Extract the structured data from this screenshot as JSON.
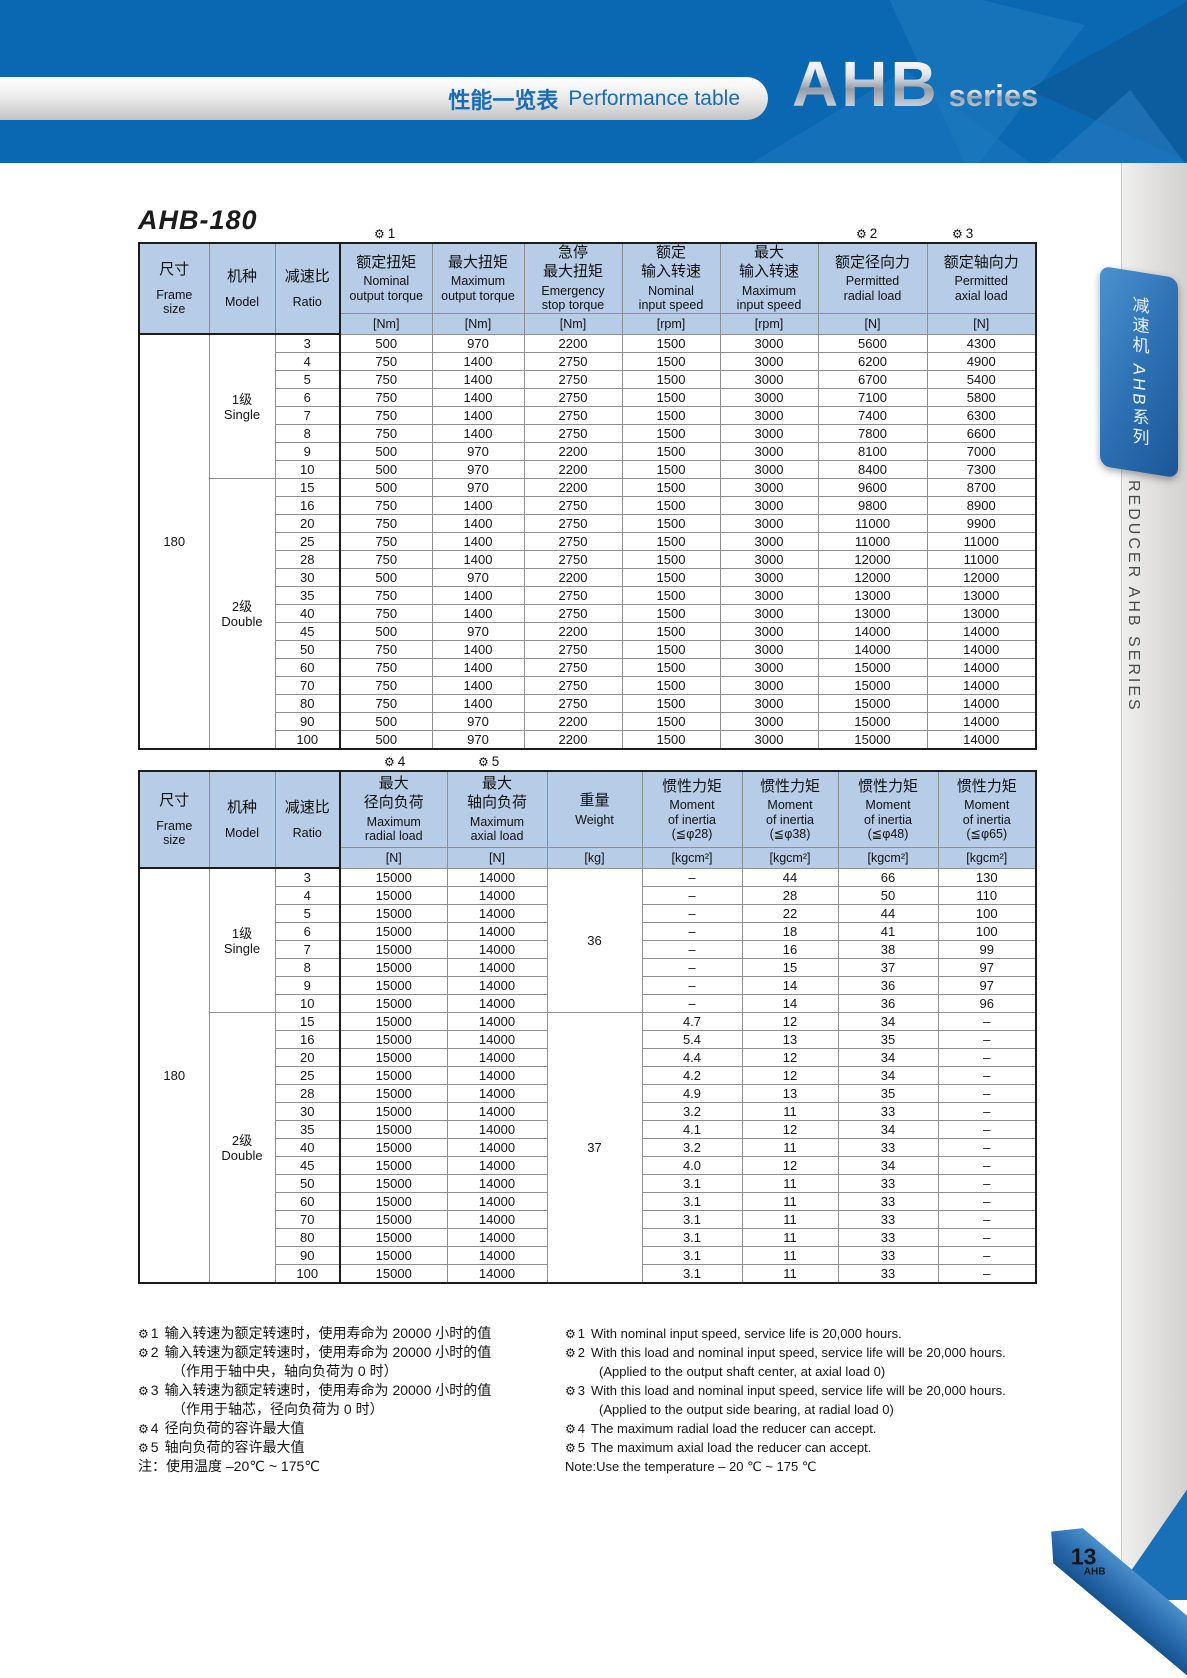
{
  "banner": {
    "category_zh": "性能一览表",
    "category_en": "Performance table",
    "series_name": "AHB",
    "series_suffix": "series"
  },
  "sidebar": {
    "tab_label": "减速机 AHB系列",
    "edge_label": "REDUCER AHB SERIES"
  },
  "page_footer": {
    "page_number": "13",
    "page_series": "AHB"
  },
  "section": {
    "title": "AHB-180"
  },
  "icons": {
    "gear": "⚙"
  },
  "table1": {
    "markers": [
      "1",
      "2",
      "3"
    ],
    "frame": "180",
    "columns": [
      {
        "zh": "尺寸",
        "en": "Frame\nsize",
        "unit": null
      },
      {
        "zh": "机种",
        "en": "Model",
        "unit": null
      },
      {
        "zh": "减速比",
        "en": "Ratio",
        "unit": null
      },
      {
        "zh": "额定扭矩",
        "en": "Nominal\noutput torque",
        "unit": "[Nm]"
      },
      {
        "zh": "最大扭矩",
        "en": "Maximum\noutput torque",
        "unit": "[Nm]"
      },
      {
        "zh": "急停\n最大扭矩",
        "en": "Emergency\nstop torque",
        "unit": "[Nm]"
      },
      {
        "zh": "额定\n输入转速",
        "en": "Nominal\ninput speed",
        "unit": "[rpm]"
      },
      {
        "zh": "最大\n输入转速",
        "en": "Maximum\ninput speed",
        "unit": "[rpm]"
      },
      {
        "zh": "额定径向力",
        "en": "Permitted\nradial load",
        "unit": "[N]"
      },
      {
        "zh": "额定轴向力",
        "en": "Permitted\naxial load",
        "unit": "[N]"
      }
    ],
    "groups": [
      {
        "model": "1级\nSingle",
        "rows": [
          [
            "3",
            "500",
            "970",
            "2200",
            "1500",
            "3000",
            "5600",
            "4300"
          ],
          [
            "4",
            "750",
            "1400",
            "2750",
            "1500",
            "3000",
            "6200",
            "4900"
          ],
          [
            "5",
            "750",
            "1400",
            "2750",
            "1500",
            "3000",
            "6700",
            "5400"
          ],
          [
            "6",
            "750",
            "1400",
            "2750",
            "1500",
            "3000",
            "7100",
            "5800"
          ],
          [
            "7",
            "750",
            "1400",
            "2750",
            "1500",
            "3000",
            "7400",
            "6300"
          ],
          [
            "8",
            "750",
            "1400",
            "2750",
            "1500",
            "3000",
            "7800",
            "6600"
          ],
          [
            "9",
            "500",
            "970",
            "2200",
            "1500",
            "3000",
            "8100",
            "7000"
          ],
          [
            "10",
            "500",
            "970",
            "2200",
            "1500",
            "3000",
            "8400",
            "7300"
          ]
        ]
      },
      {
        "model": "2级\nDouble",
        "rows": [
          [
            "15",
            "500",
            "970",
            "2200",
            "1500",
            "3000",
            "9600",
            "8700"
          ],
          [
            "16",
            "750",
            "1400",
            "2750",
            "1500",
            "3000",
            "9800",
            "8900"
          ],
          [
            "20",
            "750",
            "1400",
            "2750",
            "1500",
            "3000",
            "11000",
            "9900"
          ],
          [
            "25",
            "750",
            "1400",
            "2750",
            "1500",
            "3000",
            "11000",
            "11000"
          ],
          [
            "28",
            "750",
            "1400",
            "2750",
            "1500",
            "3000",
            "12000",
            "11000"
          ],
          [
            "30",
            "500",
            "970",
            "2200",
            "1500",
            "3000",
            "12000",
            "12000"
          ],
          [
            "35",
            "750",
            "1400",
            "2750",
            "1500",
            "3000",
            "13000",
            "13000"
          ],
          [
            "40",
            "750",
            "1400",
            "2750",
            "1500",
            "3000",
            "13000",
            "13000"
          ],
          [
            "45",
            "500",
            "970",
            "2200",
            "1500",
            "3000",
            "14000",
            "14000"
          ],
          [
            "50",
            "750",
            "1400",
            "2750",
            "1500",
            "3000",
            "14000",
            "14000"
          ],
          [
            "60",
            "750",
            "1400",
            "2750",
            "1500",
            "3000",
            "15000",
            "14000"
          ],
          [
            "70",
            "750",
            "1400",
            "2750",
            "1500",
            "3000",
            "15000",
            "14000"
          ],
          [
            "80",
            "750",
            "1400",
            "2750",
            "1500",
            "3000",
            "15000",
            "14000"
          ],
          [
            "90",
            "500",
            "970",
            "2200",
            "1500",
            "3000",
            "15000",
            "14000"
          ],
          [
            "100",
            "500",
            "970",
            "2200",
            "1500",
            "3000",
            "15000",
            "14000"
          ]
        ]
      }
    ]
  },
  "table2": {
    "markers": [
      "4",
      "5"
    ],
    "frame": "180",
    "columns": [
      {
        "zh": "尺寸",
        "en": "Frame\nsize",
        "unit": null
      },
      {
        "zh": "机种",
        "en": "Model",
        "unit": null
      },
      {
        "zh": "减速比",
        "en": "Ratio",
        "unit": null
      },
      {
        "zh": "最大\n径向负荷",
        "en": "Maximum\nradial load",
        "unit": "[N]"
      },
      {
        "zh": "最大\n轴向负荷",
        "en": "Maximum\naxial load",
        "unit": "[N]"
      },
      {
        "zh": "重量",
        "en": "Weight",
        "unit": "[kg]"
      },
      {
        "zh": "惯性力矩",
        "en": "Moment\nof inertia\n(≦φ28)",
        "unit": "[kgcm²]"
      },
      {
        "zh": "惯性力矩",
        "en": "Moment\nof inertia\n(≦φ38)",
        "unit": "[kgcm²]"
      },
      {
        "zh": "惯性力矩",
        "en": "Moment\nof inertia\n(≦φ48)",
        "unit": "[kgcm²]"
      },
      {
        "zh": "惯性力矩",
        "en": "Moment\nof inertia\n(≦φ65)",
        "unit": "[kgcm²]"
      }
    ],
    "groups": [
      {
        "model": "1级\nSingle",
        "weight": "36",
        "rows": [
          [
            "3",
            "15000",
            "14000",
            "–",
            "44",
            "66",
            "130"
          ],
          [
            "4",
            "15000",
            "14000",
            "–",
            "28",
            "50",
            "110"
          ],
          [
            "5",
            "15000",
            "14000",
            "–",
            "22",
            "44",
            "100"
          ],
          [
            "6",
            "15000",
            "14000",
            "–",
            "18",
            "41",
            "100"
          ],
          [
            "7",
            "15000",
            "14000",
            "–",
            "16",
            "38",
            "99"
          ],
          [
            "8",
            "15000",
            "14000",
            "–",
            "15",
            "37",
            "97"
          ],
          [
            "9",
            "15000",
            "14000",
            "–",
            "14",
            "36",
            "97"
          ],
          [
            "10",
            "15000",
            "14000",
            "–",
            "14",
            "36",
            "96"
          ]
        ]
      },
      {
        "model": "2级\nDouble",
        "weight": "37",
        "rows": [
          [
            "15",
            "15000",
            "14000",
            "4.7",
            "12",
            "34",
            "–"
          ],
          [
            "16",
            "15000",
            "14000",
            "5.4",
            "13",
            "35",
            "–"
          ],
          [
            "20",
            "15000",
            "14000",
            "4.4",
            "12",
            "34",
            "–"
          ],
          [
            "25",
            "15000",
            "14000",
            "4.2",
            "12",
            "34",
            "–"
          ],
          [
            "28",
            "15000",
            "14000",
            "4.9",
            "13",
            "35",
            "–"
          ],
          [
            "30",
            "15000",
            "14000",
            "3.2",
            "11",
            "33",
            "–"
          ],
          [
            "35",
            "15000",
            "14000",
            "4.1",
            "12",
            "34",
            "–"
          ],
          [
            "40",
            "15000",
            "14000",
            "3.2",
            "11",
            "33",
            "–"
          ],
          [
            "45",
            "15000",
            "14000",
            "4.0",
            "12",
            "34",
            "–"
          ],
          [
            "50",
            "15000",
            "14000",
            "3.1",
            "11",
            "33",
            "–"
          ],
          [
            "60",
            "15000",
            "14000",
            "3.1",
            "11",
            "33",
            "–"
          ],
          [
            "70",
            "15000",
            "14000",
            "3.1",
            "11",
            "33",
            "–"
          ],
          [
            "80",
            "15000",
            "14000",
            "3.1",
            "11",
            "33",
            "–"
          ],
          [
            "90",
            "15000",
            "14000",
            "3.1",
            "11",
            "33",
            "–"
          ],
          [
            "100",
            "15000",
            "14000",
            "3.1",
            "11",
            "33",
            "–"
          ]
        ]
      }
    ]
  },
  "notes": {
    "zh": [
      {
        "mark": "1",
        "text": "输入转速为额定转速时，使用寿命为 20000 小时的值"
      },
      {
        "mark": "2",
        "text": "输入转速为额定转速时，使用寿命为 20000 小时的值",
        "sub": "（作用于轴中央，轴向负荷为 0 时）"
      },
      {
        "mark": "3",
        "text": "输入转速为额定转速时，使用寿命为 20000 小时的值",
        "sub": "（作用于轴芯，径向负荷为 0 时）"
      },
      {
        "mark": "4",
        "text": "径向负荷的容许最大值"
      },
      {
        "mark": "5",
        "text": "轴向负荷的容许最大值"
      },
      {
        "text": "注：使用温度 –20℃ ~ 175℃"
      }
    ],
    "en": [
      {
        "mark": "1",
        "text": "With nominal input speed, service life is 20,000 hours."
      },
      {
        "mark": "2",
        "text": "With this load and nominal input speed, service life will be 20,000 hours.",
        "sub": "(Applied to the output shaft center, at axial load 0)"
      },
      {
        "mark": "3",
        "text": "With this load and nominal input speed, service life will be 20,000 hours.",
        "sub": "(Applied to the output side bearing, at radial load 0)"
      },
      {
        "mark": "4",
        "text": "The maximum radial load the reducer can accept."
      },
      {
        "mark": "5",
        "text": "The maximum axial load the reducer can accept."
      },
      {
        "text": "Note:Use the temperature – 20 ℃ ~ 175 ℃"
      }
    ]
  },
  "colors": {
    "banner_blue": "#0a67b1",
    "header_cell_blue": "#b7cde7",
    "accent_text_blue": "#1a6cb5",
    "tab_blue": "#2d71b4"
  }
}
